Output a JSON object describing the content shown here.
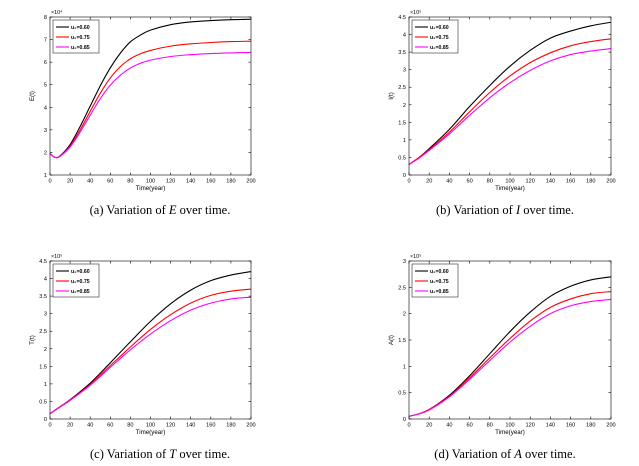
{
  "chart_data": [
    {
      "type": "line",
      "ylabel": "E(t)",
      "xlabel": "Time(year)",
      "exponent_label": "×10⁴",
      "exponent": 4,
      "ylim": [
        1,
        8
      ],
      "yticks": [
        1,
        2,
        3,
        4,
        5,
        6,
        7,
        8
      ],
      "xlim": [
        0,
        200
      ],
      "xticks": [
        0,
        20,
        40,
        60,
        80,
        100,
        120,
        140,
        160,
        180,
        200
      ],
      "legend_position": "top-left",
      "x": [
        0,
        5,
        10,
        20,
        30,
        40,
        50,
        60,
        70,
        80,
        90,
        100,
        120,
        140,
        160,
        180,
        200
      ],
      "series": [
        {
          "name": "u₂=0.60",
          "color": "#000000",
          "values": [
            1.95,
            1.78,
            1.85,
            2.35,
            3.15,
            4.05,
            4.95,
            5.75,
            6.4,
            6.9,
            7.2,
            7.42,
            7.66,
            7.78,
            7.84,
            7.88,
            7.9
          ]
        },
        {
          "name": "u₂=0.75",
          "color": "#ff0000",
          "values": [
            1.95,
            1.78,
            1.84,
            2.28,
            3.0,
            3.82,
            4.62,
            5.3,
            5.8,
            6.15,
            6.37,
            6.52,
            6.71,
            6.81,
            6.87,
            6.91,
            6.93
          ]
        },
        {
          "name": "u₂=0.85",
          "color": "#ff00ff",
          "values": [
            1.95,
            1.78,
            1.83,
            2.24,
            2.9,
            3.65,
            4.38,
            4.98,
            5.42,
            5.74,
            5.95,
            6.09,
            6.25,
            6.33,
            6.38,
            6.41,
            6.43
          ]
        }
      ]
    },
    {
      "type": "line",
      "ylabel": "I(t)",
      "xlabel": "Time(year)",
      "exponent_label": "×10⁵",
      "exponent": 5,
      "ylim": [
        0,
        4.5
      ],
      "yticks": [
        0,
        0.5,
        1,
        1.5,
        2,
        2.5,
        3,
        3.5,
        4,
        4.5
      ],
      "xlim": [
        0,
        200
      ],
      "xticks": [
        0,
        20,
        40,
        60,
        80,
        100,
        120,
        140,
        160,
        180,
        200
      ],
      "legend_position": "top-left",
      "x": [
        0,
        10,
        20,
        40,
        60,
        80,
        100,
        120,
        140,
        160,
        180,
        200
      ],
      "series": [
        {
          "name": "u₂=0.60",
          "color": "#000000",
          "values": [
            0.3,
            0.5,
            0.75,
            1.3,
            1.95,
            2.55,
            3.1,
            3.55,
            3.9,
            4.1,
            4.25,
            4.35
          ]
        },
        {
          "name": "u₂=0.75",
          "color": "#ff0000",
          "values": [
            0.3,
            0.5,
            0.72,
            1.22,
            1.8,
            2.35,
            2.82,
            3.2,
            3.48,
            3.68,
            3.8,
            3.88
          ]
        },
        {
          "name": "u₂=0.85",
          "color": "#ff00ff",
          "values": [
            0.3,
            0.48,
            0.7,
            1.17,
            1.7,
            2.2,
            2.63,
            2.98,
            3.25,
            3.43,
            3.53,
            3.6
          ]
        }
      ]
    },
    {
      "type": "line",
      "ylabel": "T(t)",
      "xlabel": "Time(year)",
      "exponent_label": "×10⁵",
      "exponent": 5,
      "ylim": [
        0,
        4.5
      ],
      "yticks": [
        0,
        0.5,
        1,
        1.5,
        2,
        2.5,
        3,
        3.5,
        4,
        4.5
      ],
      "xlim": [
        0,
        200
      ],
      "xticks": [
        0,
        20,
        40,
        60,
        80,
        100,
        120,
        140,
        160,
        180,
        200
      ],
      "legend_position": "top-left",
      "x": [
        0,
        10,
        20,
        40,
        60,
        80,
        100,
        120,
        140,
        160,
        180,
        200
      ],
      "series": [
        {
          "name": "u₂=0.60",
          "color": "#000000",
          "values": [
            0.15,
            0.35,
            0.55,
            1.02,
            1.6,
            2.2,
            2.78,
            3.28,
            3.67,
            3.94,
            4.1,
            4.2
          ]
        },
        {
          "name": "u₂=0.75",
          "color": "#ff0000",
          "values": [
            0.15,
            0.35,
            0.54,
            0.98,
            1.52,
            2.05,
            2.55,
            2.97,
            3.3,
            3.52,
            3.64,
            3.7
          ]
        },
        {
          "name": "u₂=0.85",
          "color": "#ff00ff",
          "values": [
            0.15,
            0.34,
            0.53,
            0.96,
            1.47,
            1.97,
            2.42,
            2.8,
            3.1,
            3.3,
            3.42,
            3.47
          ]
        }
      ]
    },
    {
      "type": "line",
      "ylabel": "A(t)",
      "xlabel": "Time(year)",
      "exponent_label": "×10⁵",
      "exponent": 5,
      "ylim": [
        0,
        3
      ],
      "yticks": [
        0,
        0.5,
        1,
        1.5,
        2,
        2.5,
        3
      ],
      "xlim": [
        0,
        200
      ],
      "xticks": [
        0,
        20,
        40,
        60,
        80,
        100,
        120,
        140,
        160,
        180,
        200
      ],
      "legend_position": "top-left",
      "x": [
        0,
        10,
        20,
        40,
        60,
        80,
        100,
        120,
        140,
        160,
        180,
        200
      ],
      "series": [
        {
          "name": "u₂=0.60",
          "color": "#000000",
          "values": [
            0.05,
            0.1,
            0.18,
            0.45,
            0.82,
            1.24,
            1.66,
            2.03,
            2.33,
            2.52,
            2.64,
            2.7
          ]
        },
        {
          "name": "u₂=0.75",
          "color": "#ff0000",
          "values": [
            0.05,
            0.1,
            0.18,
            0.43,
            0.78,
            1.16,
            1.53,
            1.86,
            2.12,
            2.28,
            2.38,
            2.42
          ]
        },
        {
          "name": "u₂=0.85",
          "color": "#ff00ff",
          "values": [
            0.05,
            0.1,
            0.17,
            0.42,
            0.75,
            1.11,
            1.46,
            1.76,
            2.0,
            2.15,
            2.23,
            2.27
          ]
        }
      ]
    }
  ],
  "captions": [
    {
      "prefix": "(a) Variation of ",
      "var": "E",
      "suffix": " over time."
    },
    {
      "prefix": "(b) Variation of ",
      "var": "I",
      "suffix": " over time."
    },
    {
      "prefix": "(c) Variation of ",
      "var": "T",
      "suffix": " over time."
    },
    {
      "prefix": "(d) Variation of ",
      "var": "A",
      "suffix": " over time."
    }
  ]
}
